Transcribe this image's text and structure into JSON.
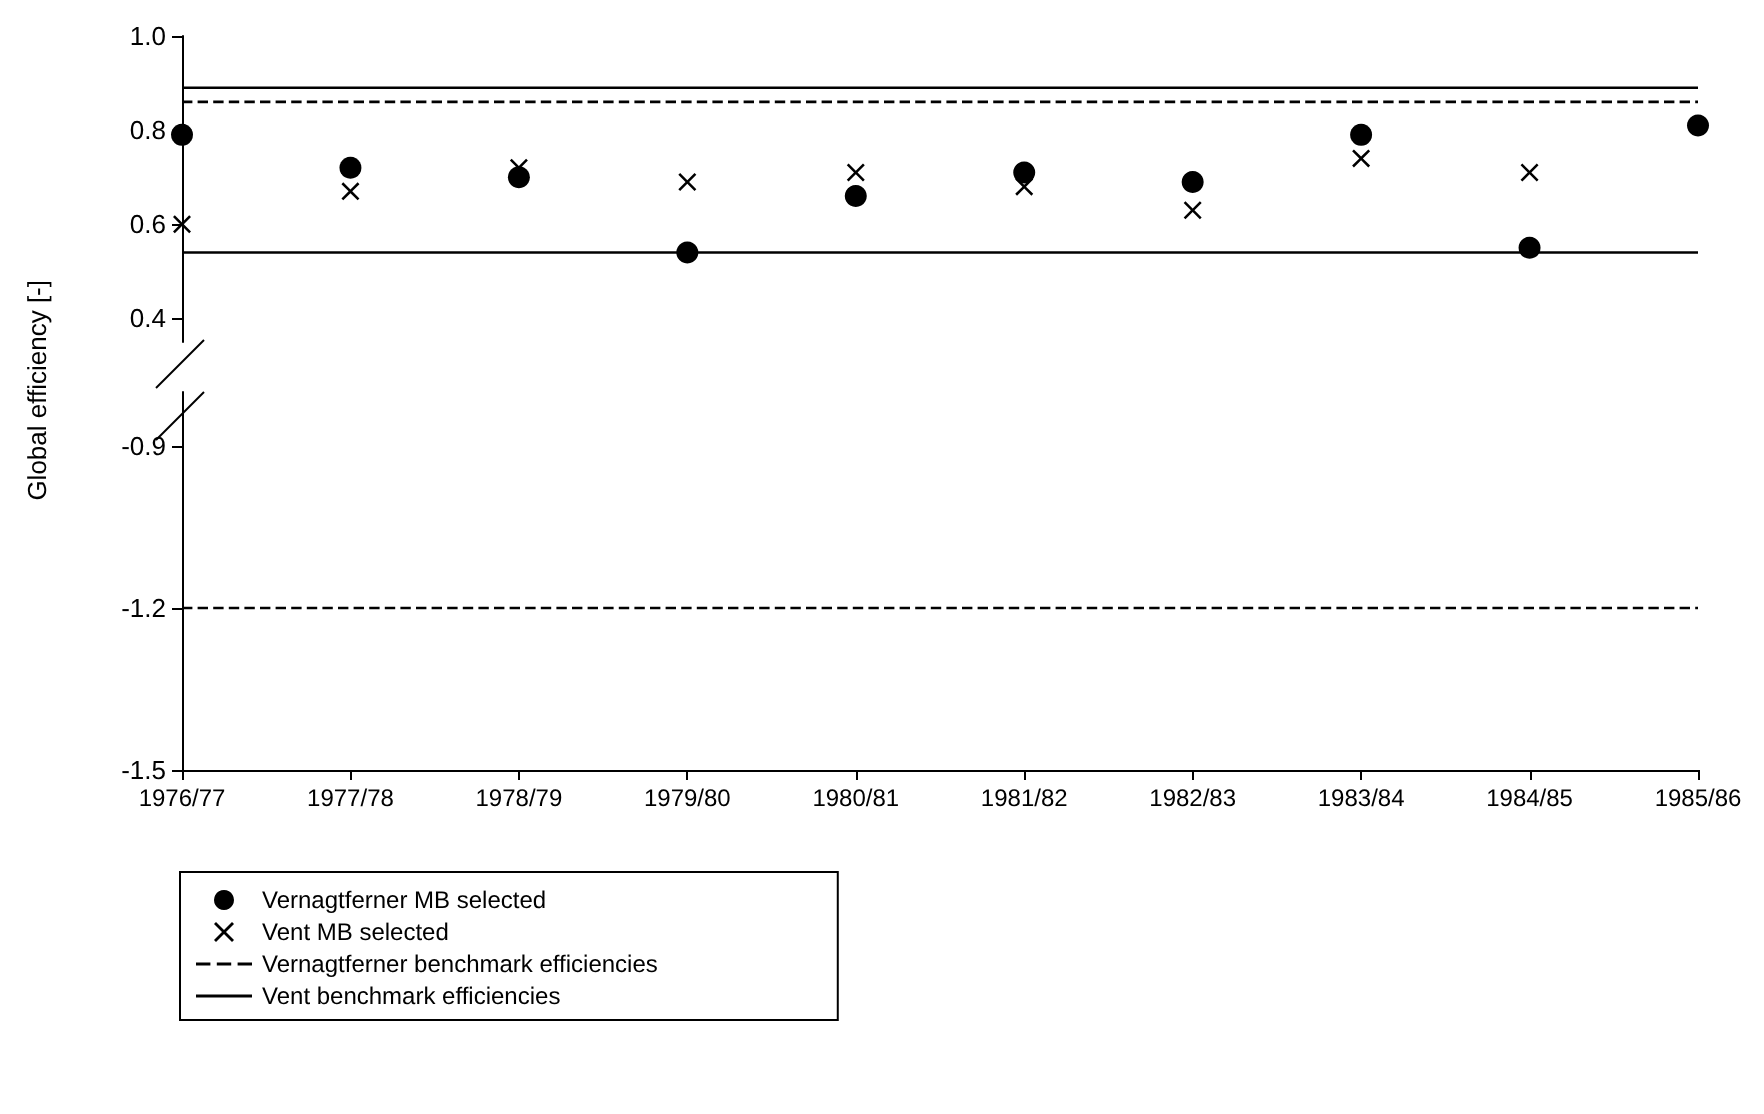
{
  "chart_data": [
    {
      "type": "scatter",
      "ylabel": "Global efficiency [-]",
      "categories": [
        "1976/77",
        "1977/78",
        "1978/79",
        "1979/80",
        "1980/81",
        "1981/82",
        "1982/83",
        "1983/84",
        "1984/85",
        "1985/86"
      ],
      "series": [
        {
          "name": "Vernagtferner MB selected",
          "color": "#000000",
          "marker": "circle",
          "values": [
            0.79,
            0.72,
            0.7,
            0.54,
            0.66,
            0.71,
            0.69,
            0.79,
            0.55,
            0.81
          ]
        },
        {
          "name": "Vent MB selected",
          "color": "#000000",
          "marker": "cross",
          "values": [
            0.6,
            0.67,
            0.72,
            0.69,
            0.71,
            0.68,
            0.63,
            0.74,
            0.71,
            null
          ]
        }
      ],
      "ylim": [
        0.35,
        1.0
      ],
      "yticks": [
        0.4,
        0.6,
        0.8,
        {
          "value": 1.0,
          "label": "1.0"
        }
      ],
      "tick_labels": "y",
      "grid": false,
      "legend": "bottom left",
      "ref_lines": [
        {
          "axis": "y",
          "value": 0.86,
          "label": "Vernagtferner benchmark efficiencies",
          "color": "#000000",
          "line_style": "dashed"
        },
        {
          "axis": "y",
          "value": 0.89,
          "label": "Vent benchmark efficiencies",
          "color": "#000000",
          "line_style": "solid"
        },
        {
          "axis": "y",
          "value": 0.54,
          "label": null,
          "color": "#000000",
          "line_style": "solid"
        }
      ]
    },
    {
      "type": "scatter",
      "categories": [
        "1976/77",
        "1977/78",
        "1978/79",
        "1979/80",
        "1980/81",
        "1981/82",
        "1982/83",
        "1983/84",
        "1984/85",
        "1985/86"
      ],
      "ylim": [
        -1.5,
        -0.8
      ],
      "yticks": [
        -1.5,
        -1.2,
        -0.9
      ],
      "grid": false,
      "ref_lines": [
        {
          "axis": "y",
          "value": -1.2,
          "label": null,
          "color": "#000000",
          "line_style": "dashed"
        }
      ]
    }
  ]
}
